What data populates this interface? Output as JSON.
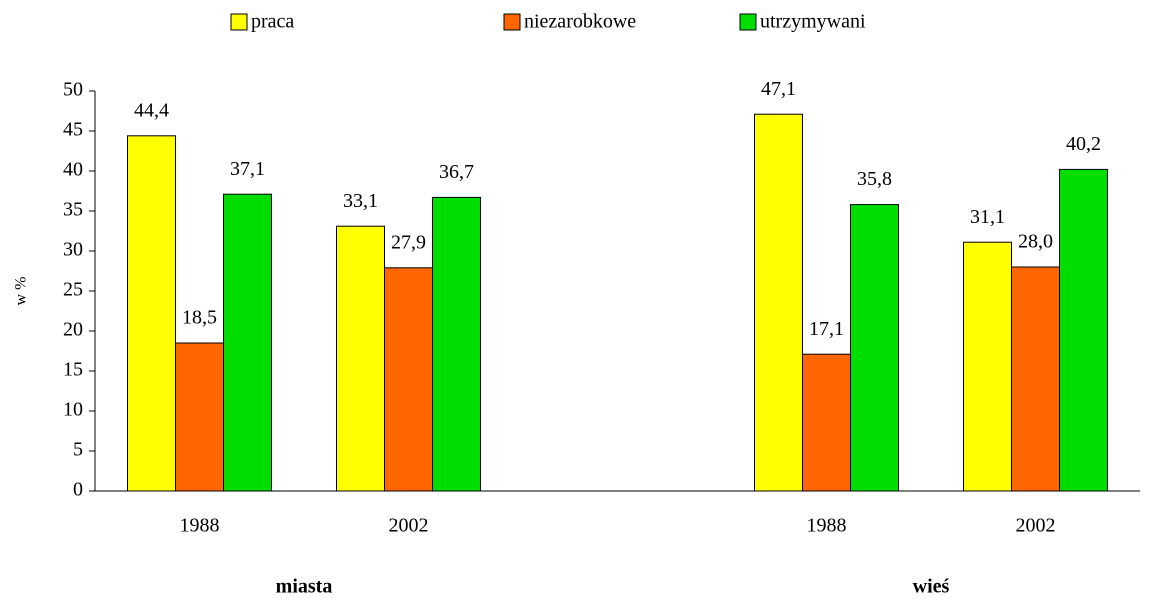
{
  "chart_data": {
    "type": "bar",
    "ylabel": "w %",
    "categories": [
      "1988",
      "2002",
      null,
      "1988",
      "2002"
    ],
    "groups": [
      "miasta",
      "wieś"
    ],
    "series": [
      {
        "name": "praca",
        "color": "#ffff00",
        "values": [
          44.4,
          33.1,
          null,
          47.1,
          31.1
        ],
        "value_labels": [
          "44,4",
          "33,1",
          null,
          "47,1",
          "31,1"
        ]
      },
      {
        "name": "niezarobkowe",
        "color": "#ff6600",
        "values": [
          18.5,
          27.9,
          null,
          17.1,
          28.0
        ],
        "value_labels": [
          "18,5",
          "27,9",
          null,
          "17,1",
          "28,0"
        ]
      },
      {
        "name": "utrzymywani",
        "color": "#00dd00",
        "values": [
          37.1,
          36.7,
          null,
          35.8,
          40.2
        ],
        "value_labels": [
          "37,1",
          "36,7",
          null,
          "35,8",
          "40,2"
        ]
      }
    ],
    "ylim": [
      0,
      50
    ],
    "yticks": [
      0,
      5,
      10,
      15,
      20,
      25,
      30,
      35,
      40,
      45,
      50
    ],
    "grid": false,
    "legend": "top"
  }
}
